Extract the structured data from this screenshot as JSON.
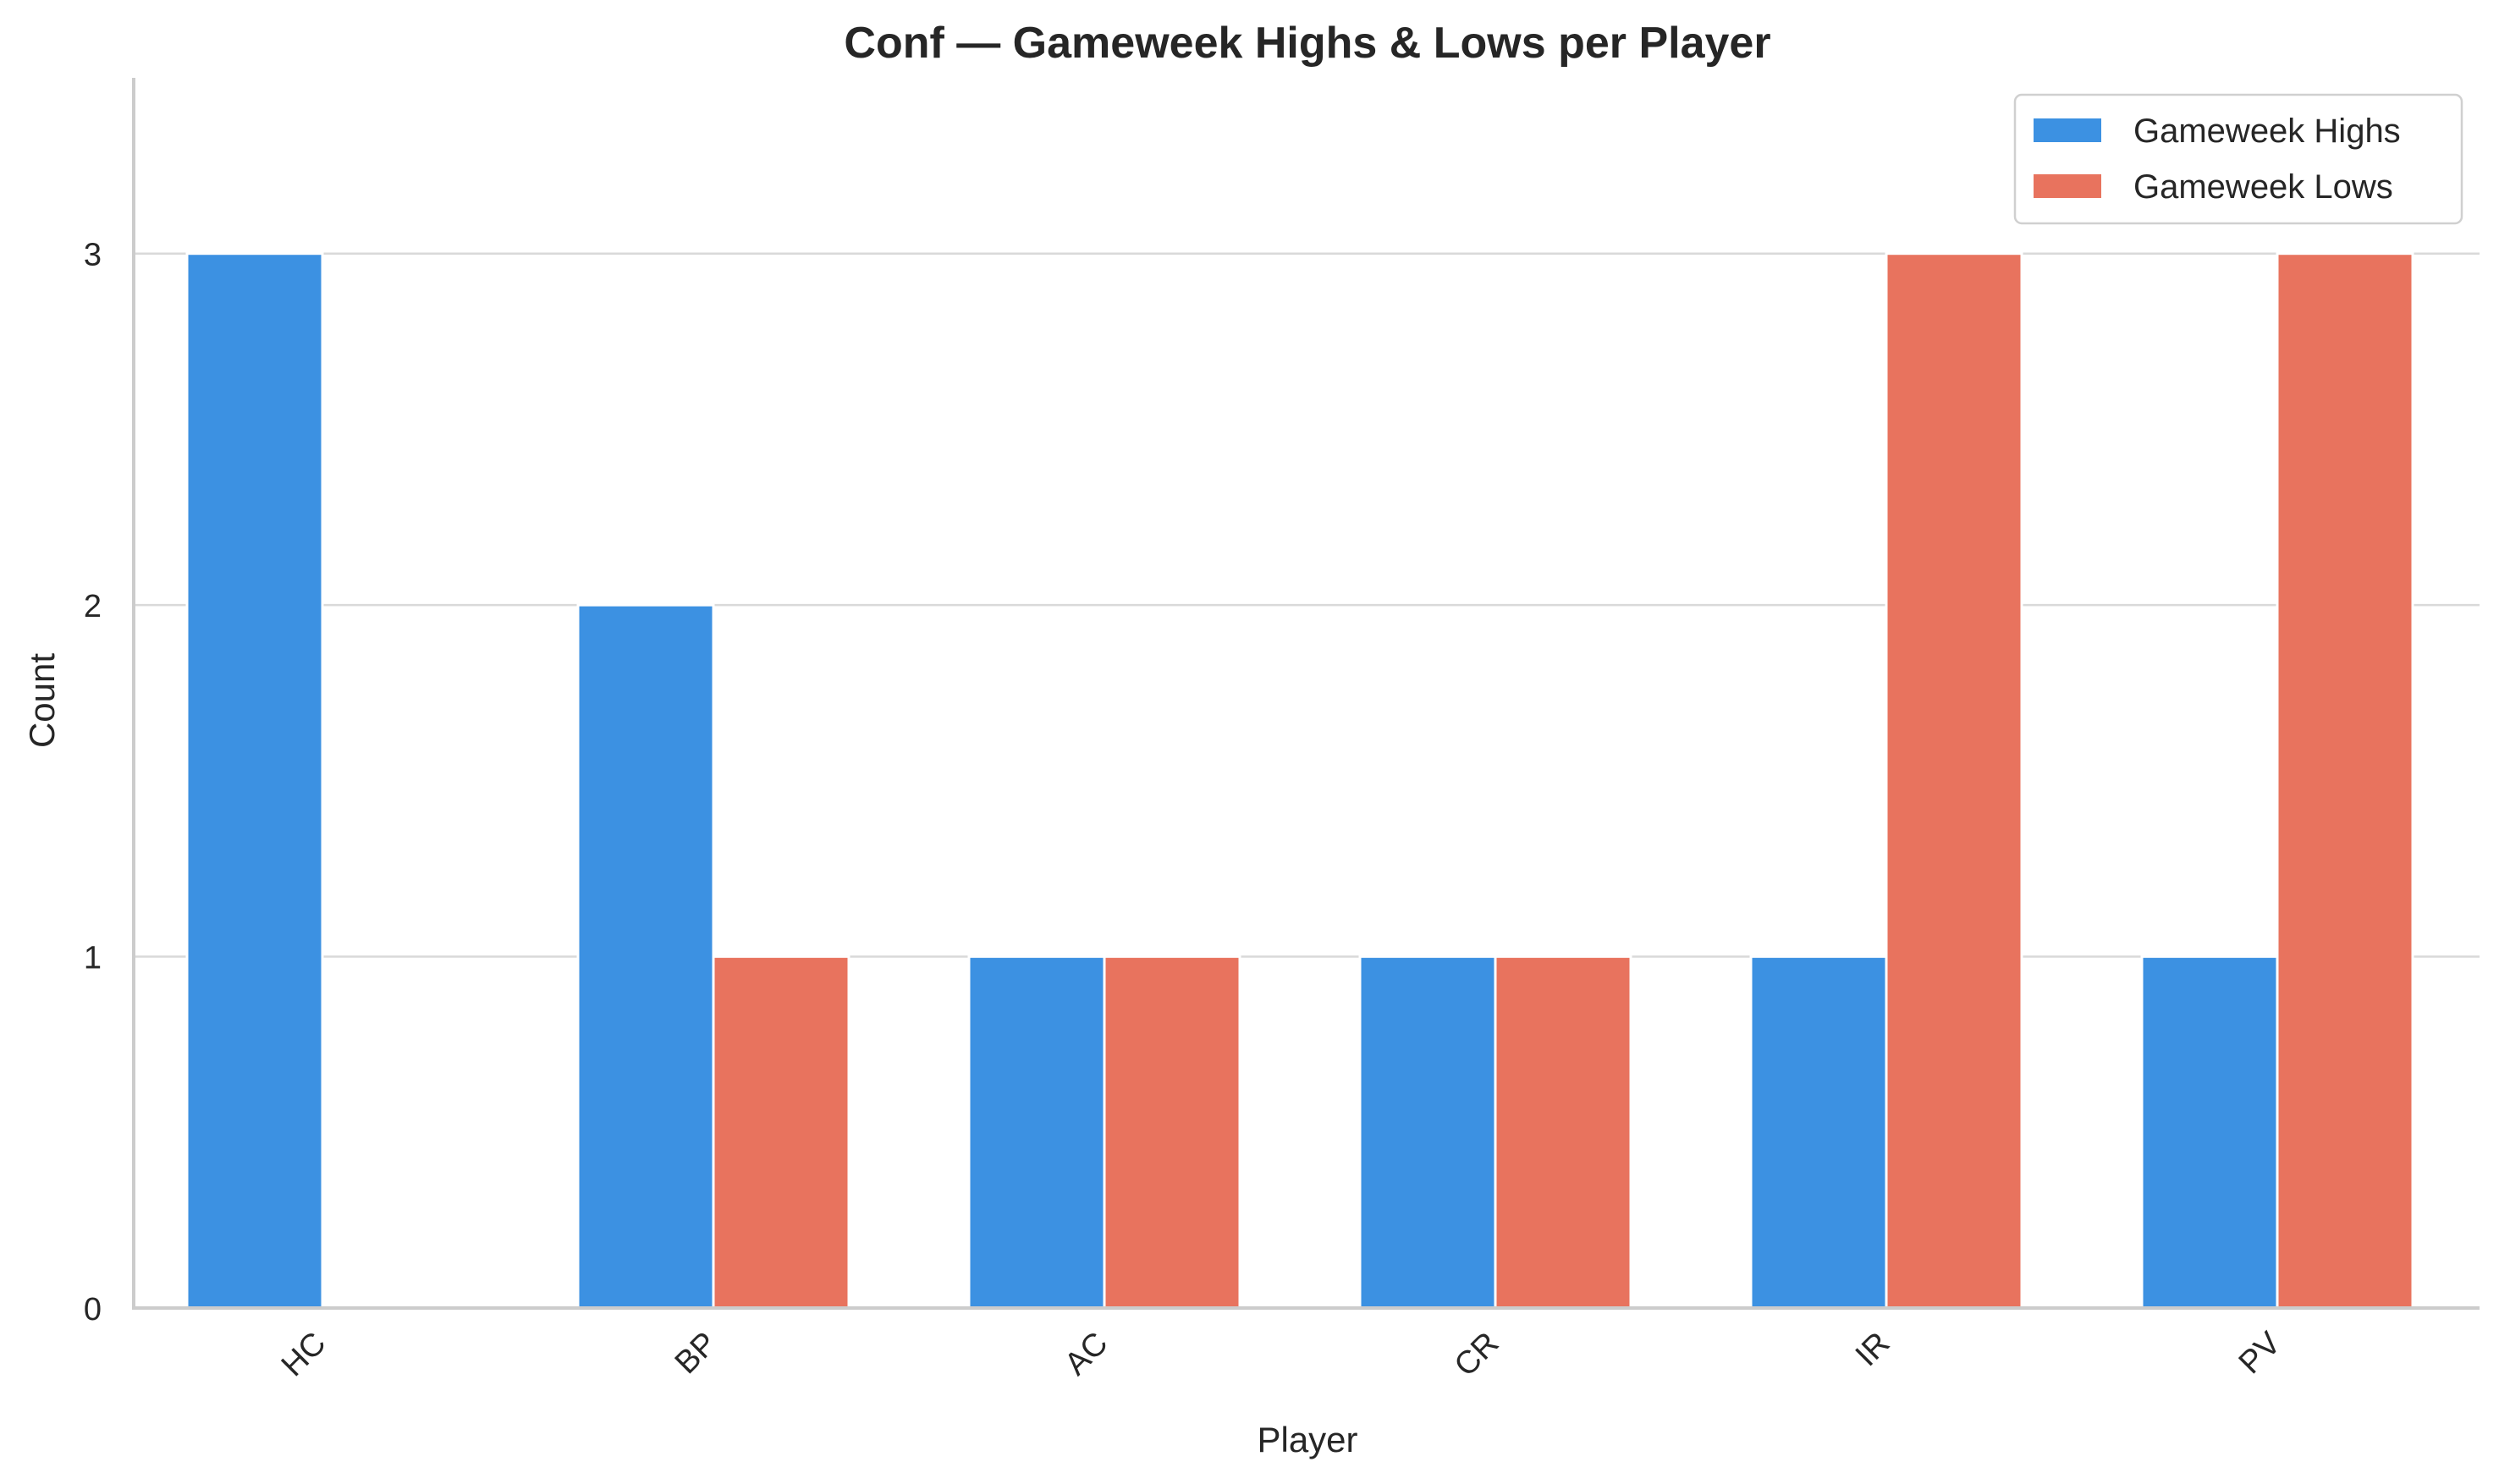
{
  "chart_data": {
    "type": "bar",
    "title": "Conf — Gameweek Highs & Lows per Player",
    "xlabel": "Player",
    "ylabel": "Count",
    "categories": [
      "HC",
      "BP",
      "AC",
      "CR",
      "IR",
      "PV"
    ],
    "series": [
      {
        "name": "Gameweek Highs",
        "color": "#3c91e2",
        "values": [
          3,
          2,
          1,
          1,
          1,
          1
        ]
      },
      {
        "name": "Gameweek Lows",
        "color": "#e8735e",
        "values": [
          0,
          1,
          1,
          1,
          3,
          3
        ]
      }
    ],
    "ylim": [
      0,
      3.5
    ],
    "yticks": [
      0,
      1,
      2,
      3
    ],
    "grid": "horizontal",
    "legend": "top-right"
  }
}
